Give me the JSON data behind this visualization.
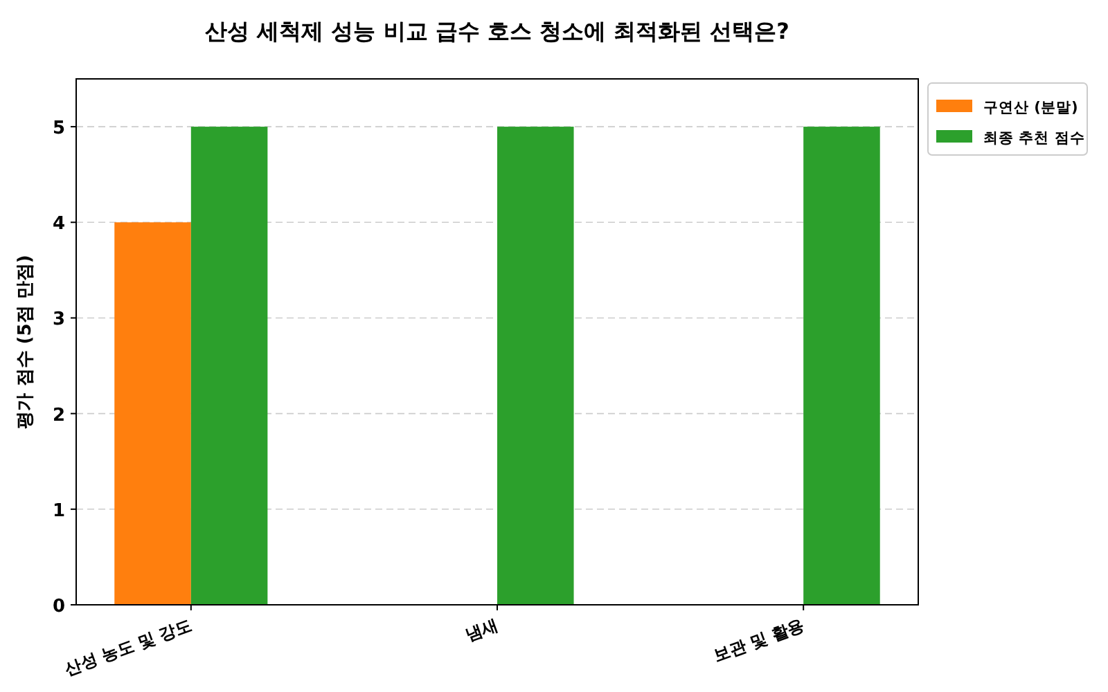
{
  "chart_data": {
    "type": "bar",
    "title": "산성 세척제 성능 비교 급수 호스 청소에 최적화된 선택은?",
    "ylabel": "평가 점수 (5점 만점)",
    "categories": [
      "산성 농도 및 강도",
      "냄새",
      "보관 및 활용"
    ],
    "series": [
      {
        "name": "구연산 (분말)",
        "color": "#ff7f0e",
        "values": [
          4,
          null,
          null
        ]
      },
      {
        "name": "최종 추천 점수",
        "color": "#2ca02c",
        "values": [
          5,
          5,
          5
        ]
      }
    ],
    "ylim": [
      0,
      5.5
    ],
    "yticks": [
      0,
      1,
      2,
      3,
      4,
      5
    ],
    "grid": "y",
    "legend": "top right"
  }
}
